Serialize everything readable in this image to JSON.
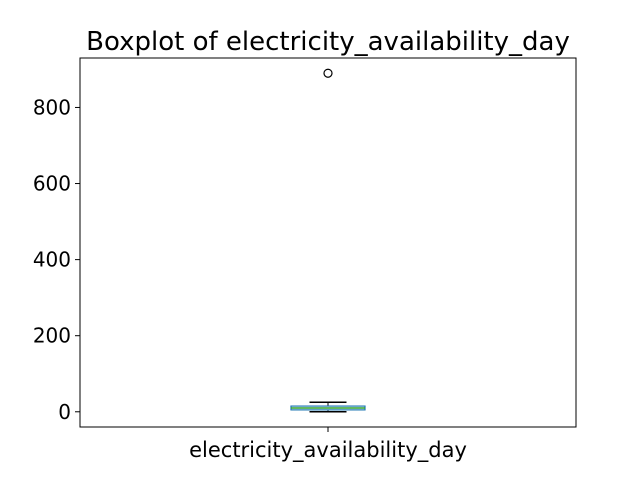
{
  "chart_data": {
    "type": "box",
    "title": "Boxplot of electricity_availability_day",
    "xlabel": "",
    "ylabel": "",
    "categories": [
      "electricity_availability_day"
    ],
    "ylim": [
      -40,
      930
    ],
    "y_ticks": [
      0,
      200,
      400,
      600,
      800
    ],
    "grid": false,
    "legend": "none",
    "boxes": [
      {
        "name": "electricity_availability_day",
        "whisker_low": 0,
        "q1": 5,
        "median": 10,
        "q3": 15,
        "whisker_high": 25,
        "outliers": [
          890
        ]
      }
    ],
    "colors": {
      "box": "#1f77b4",
      "median": "#2ca02c",
      "whisker": "#000000",
      "outlier": "#000000"
    }
  }
}
